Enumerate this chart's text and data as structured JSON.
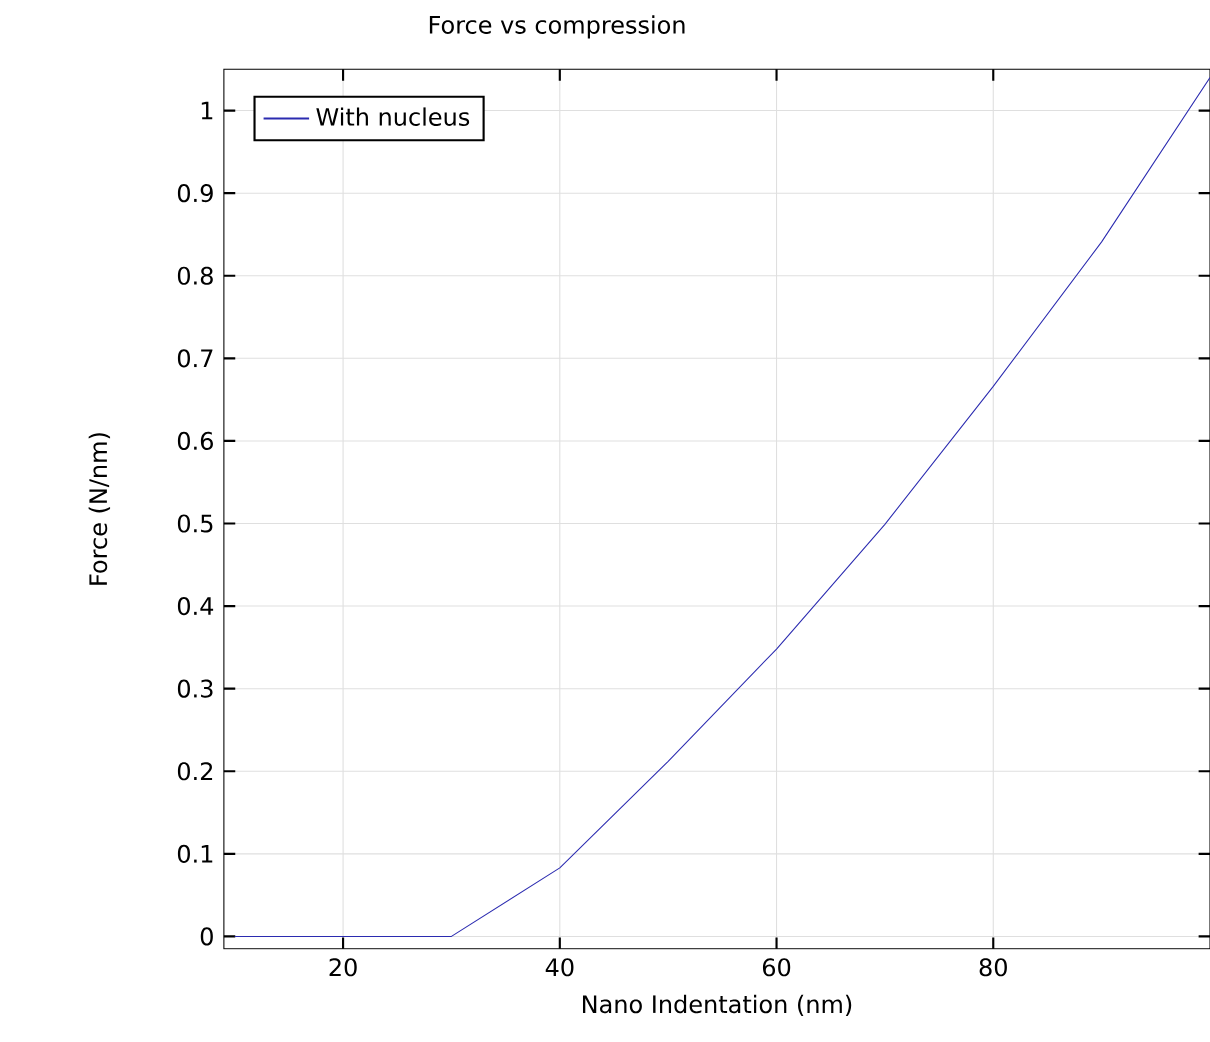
{
  "chart_data": {
    "type": "line",
    "title": "Force vs compression",
    "xlabel": "Nano Indentation (nm)",
    "ylabel": "Force (N/nm)",
    "x": [
      10,
      20,
      30,
      40,
      50,
      60,
      70,
      80,
      90,
      100
    ],
    "series": [
      {
        "name": "With nucleus",
        "color": "#2b2bb0",
        "values": [
          0,
          0,
          0,
          0.083,
          0.212,
          0.348,
          0.499,
          0.666,
          0.841,
          1.04
        ]
      }
    ],
    "xlim": [
      9,
      100
    ],
    "ylim": [
      -0.015,
      1.05
    ],
    "xticks": [
      20,
      40,
      60,
      80
    ],
    "yticks": [
      0,
      0.1,
      0.2,
      0.3,
      0.4,
      0.5,
      0.6,
      0.7,
      0.8,
      0.9,
      1
    ],
    "grid": true,
    "legend": "top left",
    "marker": "none",
    "line_style": "solid"
  }
}
